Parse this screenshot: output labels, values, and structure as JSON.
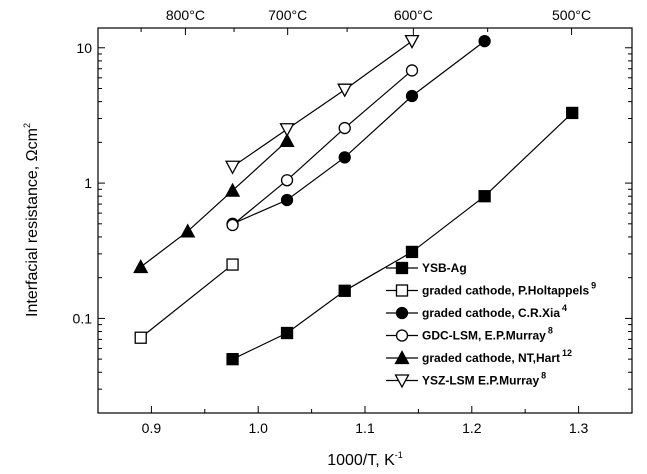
{
  "chart_data": {
    "type": "scatter",
    "xlabel": "1000/T, K",
    "xlabel_sup": "-1",
    "ylabel": "Interfacial resistance, Ωcm",
    "ylabel_sup": "2",
    "xlim": [
      0.85,
      1.35
    ],
    "ylim": [
      0.02,
      14
    ],
    "y_scale": "log",
    "x_ticks": [
      "0.9",
      "1.0",
      "1.1",
      "1.2",
      "1.3"
    ],
    "x_tick_values": [
      0.9,
      1.0,
      1.1,
      1.2,
      1.3
    ],
    "y_ticks": [
      "0.1",
      "1",
      "10"
    ],
    "y_tick_values": [
      0.1,
      1,
      10
    ],
    "top_axis": {
      "labels": [
        "800°C",
        "700°C",
        "600°C",
        "500°C"
      ],
      "celsius": [
        800,
        700,
        600,
        500
      ]
    },
    "legend_position": "lower-right",
    "series": [
      {
        "name": "YSB-Ag",
        "sup": "",
        "marker": "square-filled",
        "x": [
          0.976,
          1.027,
          1.081,
          1.144,
          1.212,
          1.294
        ],
        "y": [
          0.05,
          0.078,
          0.16,
          0.31,
          0.8,
          3.3
        ]
      },
      {
        "name": "graded cathode, P.Holtappels",
        "sup": "9",
        "marker": "square-open",
        "x": [
          0.89,
          0.976
        ],
        "y": [
          0.072,
          0.25
        ]
      },
      {
        "name": "graded cathode, C.R.Xia",
        "sup": "4",
        "marker": "circle-filled",
        "x": [
          0.976,
          1.027,
          1.081,
          1.144,
          1.212
        ],
        "y": [
          0.5,
          0.75,
          1.55,
          4.4,
          11.2
        ]
      },
      {
        "name": "GDC-LSM, E.P.Murray",
        "sup": "8",
        "marker": "circle-open",
        "x": [
          0.976,
          1.027,
          1.081,
          1.144
        ],
        "y": [
          0.49,
          1.05,
          2.55,
          6.8
        ]
      },
      {
        "name": "graded cathode, NT,Hart",
        "sup": "12",
        "marker": "triangle-up-filled",
        "x": [
          0.89,
          0.934,
          0.976,
          1.027
        ],
        "y": [
          0.24,
          0.44,
          0.88,
          2.05
        ]
      },
      {
        "name": "YSZ-LSM E.P.Murray",
        "sup": "8",
        "marker": "triangle-down-open",
        "x": [
          0.976,
          1.027,
          1.081,
          1.144
        ],
        "y": [
          1.32,
          2.5,
          4.9,
          11.2
        ]
      }
    ]
  }
}
